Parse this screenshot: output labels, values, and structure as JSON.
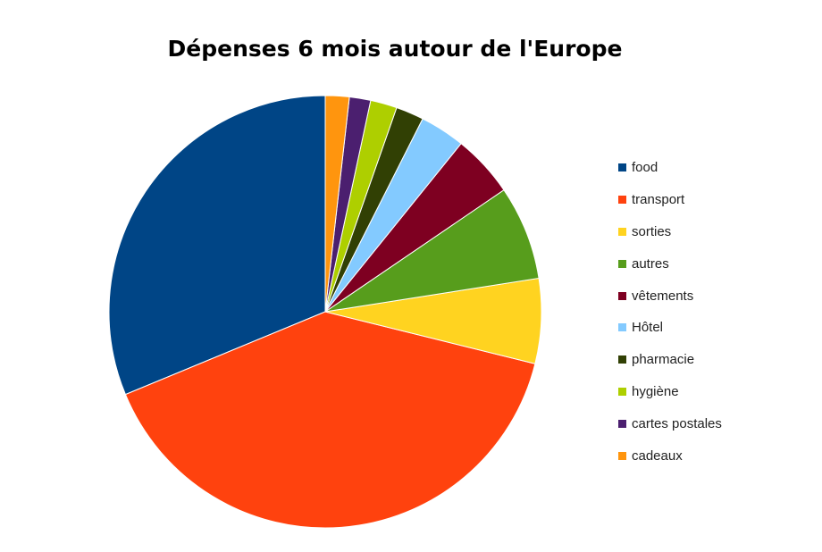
{
  "chart_data": {
    "type": "pie",
    "title": "Dépenses 6 mois autour de l'Europe",
    "legend_position": "right",
    "slices": [
      {
        "label": "food",
        "value": 31.5,
        "color": "#004586"
      },
      {
        "label": "transport",
        "value": 40.2,
        "color": "#ff420e"
      },
      {
        "label": "sorties",
        "value": 6.4,
        "color": "#ffd320"
      },
      {
        "label": "autres",
        "value": 7.1,
        "color": "#579d1c"
      },
      {
        "label": "vêtements",
        "value": 4.7,
        "color": "#7e0021"
      },
      {
        "label": "Hôtel",
        "value": 3.4,
        "color": "#83caff"
      },
      {
        "label": "pharmacie",
        "value": 2.1,
        "color": "#314004"
      },
      {
        "label": "hygiène",
        "value": 2.0,
        "color": "#aecf00"
      },
      {
        "label": "cartes postales",
        "value": 1.6,
        "color": "#4b1f6f"
      },
      {
        "label": "cadeaux",
        "value": 1.8,
        "color": "#ff950e"
      }
    ]
  }
}
